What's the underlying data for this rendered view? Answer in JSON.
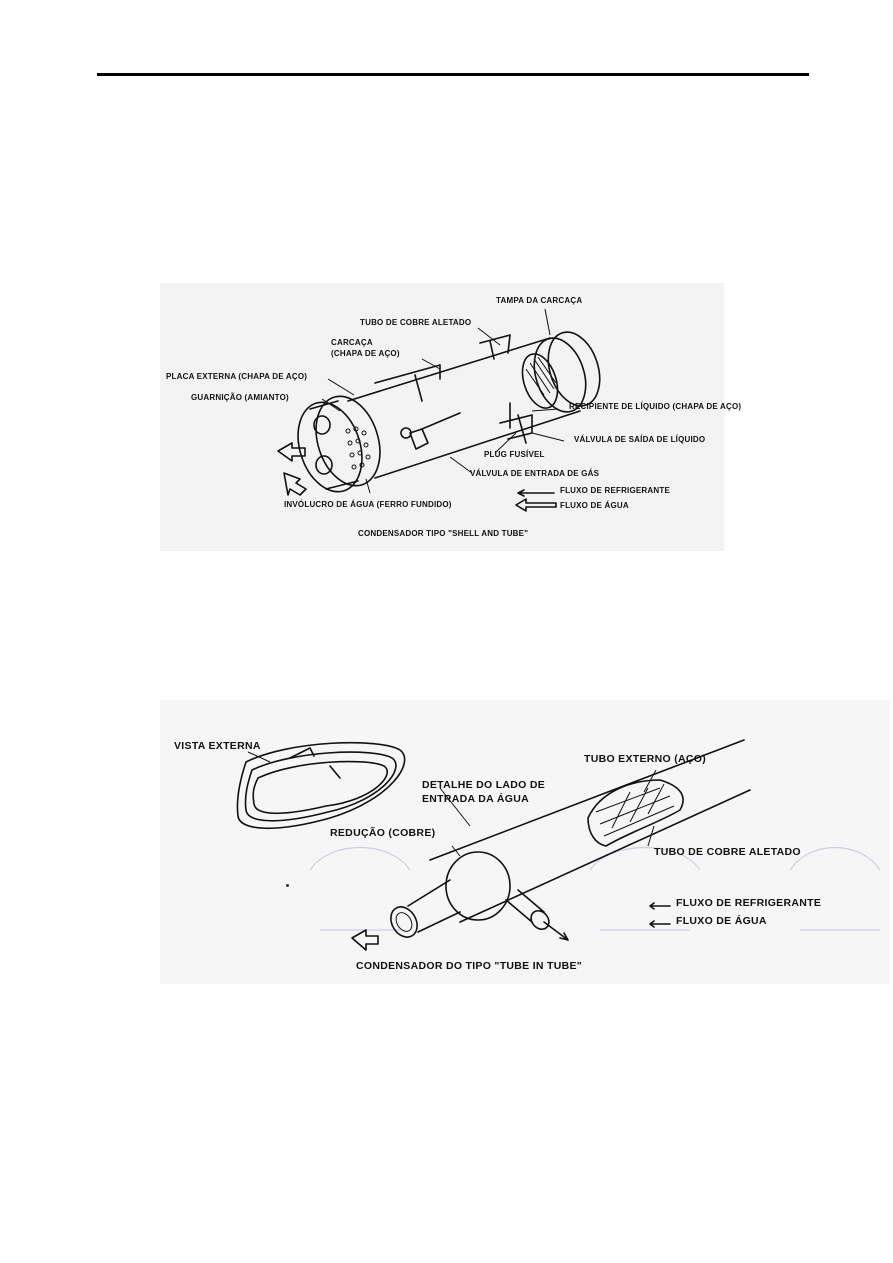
{
  "figure1": {
    "labels": {
      "tampa": "TAMPA DA CARCAÇA",
      "tubo_cobre": "TUBO DE COBRE ALETADO",
      "carcaca_1": "CARCAÇA",
      "carcaca_2": "(CHAPA DE AÇO)",
      "placa": "PLACA EXTERNA (CHAPA DE AÇO)",
      "guarnicao": "GUARNIÇÃO (AMIANTO)",
      "recipiente": "RECIPIENTE DE LÍQUIDO (CHAPA DE AÇO)",
      "valvula_saida": "VÁLVULA DE SAÍDA DE LÍQUIDO",
      "plug": "PLUG FUSÍVEL",
      "valvula_entrada": "VÁLVULA DE ENTRADA DE GÁS",
      "involucro": "INVÓLUCRO DE ÁGUA (FERRO FUNDIDO)",
      "legend_refrigerante": "FLUXO DE REFRIGERANTE",
      "legend_agua": "FLUXO DE ÁGUA",
      "caption": "CONDENSADOR TIPO \"SHELL AND TUBE\""
    }
  },
  "figure2": {
    "labels": {
      "vista": "VISTA EXTERNA",
      "tubo_externo": "TUBO EXTERNO (AÇO)",
      "detalhe_1": "DETALHE DO LADO DE",
      "detalhe_2": "ENTRADA DA ÁGUA",
      "reducao": "REDUÇÃO (COBRE)",
      "tubo_cobre": "TUBO DE COBRE ALETADO",
      "legend_refrigerante": "FLUXO DE REFRIGERANTE",
      "legend_agua": "FLUXO DE ÁGUA",
      "caption": "CONDENSADOR DO TIPO \"TUBE IN TUBE\""
    }
  }
}
